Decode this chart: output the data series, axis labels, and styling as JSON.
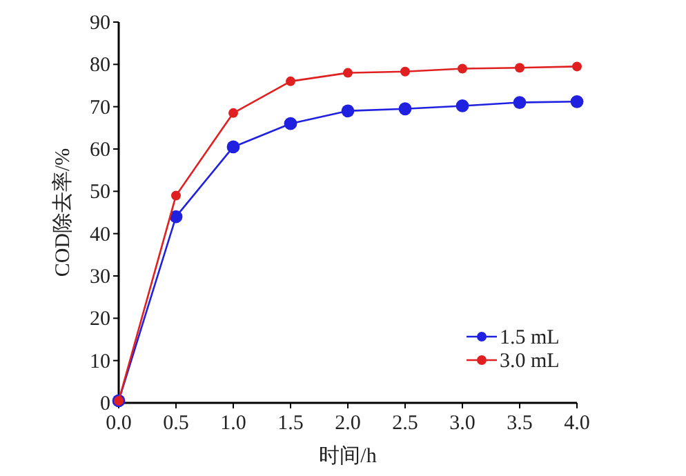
{
  "chart_data": {
    "type": "line",
    "xlabel": "时间/h",
    "ylabel": "COD除去率/%",
    "x": [
      0,
      0.5,
      1,
      1.5,
      2,
      2.5,
      3,
      3.5,
      4
    ],
    "xlim": [
      0,
      4
    ],
    "xticks": [
      {
        "value": 0,
        "label": "0.0"
      },
      0.5,
      {
        "value": 1,
        "label": "1.0"
      },
      1.5,
      {
        "value": 2,
        "label": "2.0"
      },
      2.5,
      {
        "value": 3,
        "label": "3.0"
      },
      3.5,
      {
        "value": 4,
        "label": "4.0"
      }
    ],
    "ylim": [
      0,
      90
    ],
    "yticks": [
      0,
      10,
      20,
      30,
      40,
      50,
      60,
      70,
      80,
      90
    ],
    "marker": "circle",
    "legend": "bottom right",
    "grid": false,
    "series": [
      {
        "name": "1.5 mL",
        "color": "#2020e0",
        "values": [
          0.5,
          44,
          60.5,
          66,
          69,
          69.5,
          70.2,
          71,
          71.2
        ]
      },
      {
        "name": "3.0 mL",
        "color": "#e02020",
        "values": [
          0.5,
          49,
          68.5,
          76,
          78,
          78.3,
          79,
          79.2,
          79.5
        ]
      }
    ]
  }
}
